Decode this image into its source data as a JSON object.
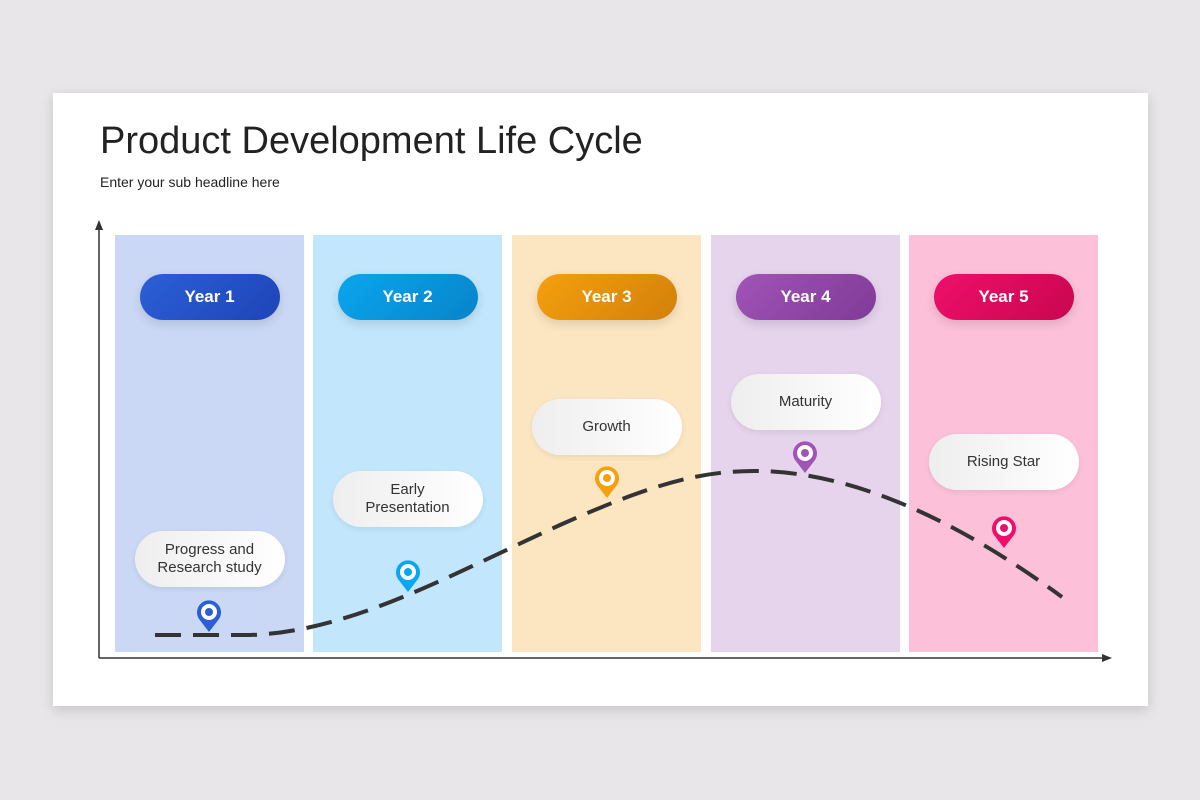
{
  "title": "Product Development Life Cycle",
  "subtitle": "Enter your sub headline here",
  "stages": [
    {
      "year": "Year 1",
      "label": "Progress and Research study",
      "bg": "#cad8f5",
      "color": "#2c5fd6",
      "color2": "#1e44b8"
    },
    {
      "year": "Year 2",
      "label": "Early Presentation",
      "bg": "#c2e6fb",
      "color": "#0aa6ee",
      "color2": "#0784c9"
    },
    {
      "year": "Year 3",
      "label": "Growth",
      "bg": "#fce6c2",
      "color": "#f5a00e",
      "color2": "#d2800a"
    },
    {
      "year": "Year 4",
      "label": "Maturity",
      "bg": "#e6d3ec",
      "color": "#a154b8",
      "color2": "#7f3a96"
    },
    {
      "year": "Year 5",
      "label": "Rising Star",
      "bg": "#fcc0d9",
      "color": "#ef0f6a",
      "color2": "#c9064f"
    }
  ]
}
